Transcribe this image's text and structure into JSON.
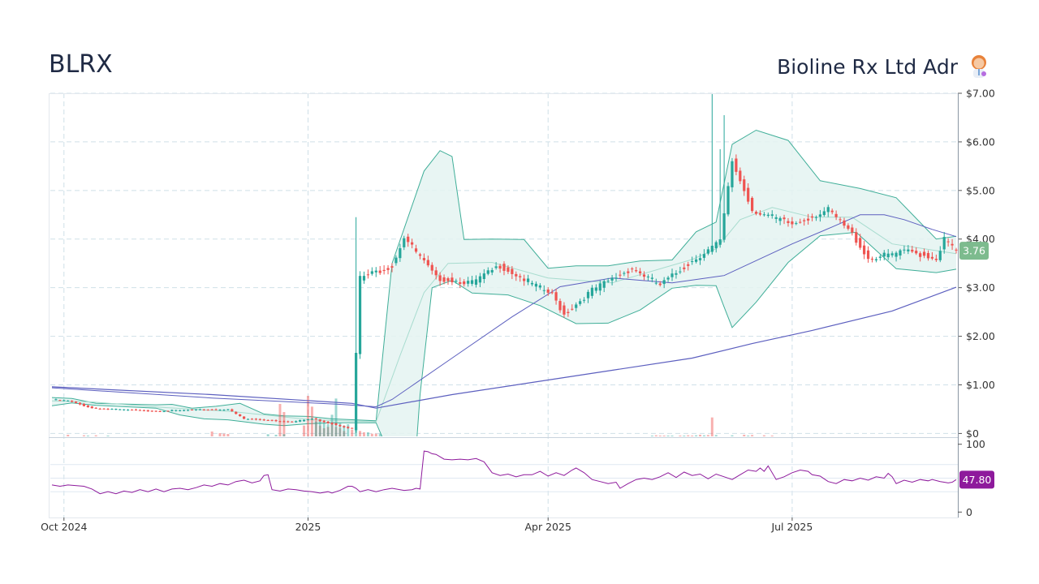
{
  "header": {
    "ticker": "BLRX",
    "company": "Bioline Rx Ltd Adr",
    "company_icon": "scientist-icon"
  },
  "colors": {
    "up": "#26a69a",
    "down": "#ef5350",
    "band_fill": "#e4f3f1",
    "band_line": "#3fae98",
    "ma_line": "#5c5fbf",
    "rsi_line": "#8e1a9c",
    "price_badge": "#7dbb8e",
    "rsi_badge": "#8e1a9c"
  },
  "chart_data": {
    "type": "candlestick",
    "price_axis": {
      "ticks": [
        "$0",
        "$1.00",
        "$2.00",
        "$3.00",
        "$4.00",
        "$5.00",
        "$6.00",
        "$7.00"
      ],
      "values": [
        0,
        1,
        2,
        3,
        4,
        5,
        6,
        7
      ],
      "ylim": [
        -0.06,
        7.0
      ]
    },
    "rsi_axis": {
      "ticks": [
        "0",
        "100"
      ],
      "values": [
        0,
        100
      ],
      "ylim": [
        -8,
        108
      ]
    },
    "x_ticks": [
      {
        "label": "Oct 2024",
        "i": 3
      },
      {
        "label": "2025",
        "i": 64
      },
      {
        "label": "Apr 2025",
        "i": 124
      },
      {
        "label": "Jul 2025",
        "i": 185
      }
    ],
    "last_price": "3.76",
    "last_rsi": "47.80",
    "segments": [
      {
        "from": 0,
        "to": 4,
        "start": 0.7,
        "end": 0.67
      },
      {
        "from": 4,
        "to": 10,
        "start": 0.67,
        "end": 0.52
      },
      {
        "from": 10,
        "to": 25,
        "start": 0.52,
        "end": 0.46
      },
      {
        "from": 25,
        "to": 44,
        "start": 0.46,
        "end": 0.5
      },
      {
        "from": 44,
        "to": 48,
        "start": 0.5,
        "end": 0.3
      },
      {
        "from": 48,
        "to": 60,
        "start": 0.3,
        "end": 0.24
      },
      {
        "from": 60,
        "to": 65,
        "start": 0.24,
        "end": 0.3
      },
      {
        "from": 65,
        "to": 75,
        "start": 0.3,
        "end": 0.1
      },
      {
        "from": 75,
        "to": 77,
        "start": 0.1,
        "end": 3.2
      },
      {
        "from": 77,
        "to": 85,
        "start": 3.2,
        "end": 3.45
      },
      {
        "from": 85,
        "to": 88,
        "start": 3.45,
        "end": 4.05
      },
      {
        "from": 88,
        "to": 96,
        "start": 4.05,
        "end": 3.2
      },
      {
        "from": 96,
        "to": 105,
        "start": 3.2,
        "end": 3.1
      },
      {
        "from": 105,
        "to": 112,
        "start": 3.1,
        "end": 3.45
      },
      {
        "from": 112,
        "to": 125,
        "start": 3.45,
        "end": 2.85
      },
      {
        "from": 125,
        "to": 128,
        "start": 2.85,
        "end": 2.45
      },
      {
        "from": 128,
        "to": 135,
        "start": 2.45,
        "end": 2.95
      },
      {
        "from": 135,
        "to": 145,
        "start": 2.95,
        "end": 3.4
      },
      {
        "from": 145,
        "to": 152,
        "start": 3.4,
        "end": 3.05
      },
      {
        "from": 152,
        "to": 160,
        "start": 3.05,
        "end": 3.55
      },
      {
        "from": 160,
        "to": 167,
        "start": 3.55,
        "end": 3.95
      },
      {
        "from": 167,
        "to": 170,
        "start": 3.95,
        "end": 5.6
      },
      {
        "from": 170,
        "to": 175,
        "start": 5.6,
        "end": 4.6
      },
      {
        "from": 175,
        "to": 185,
        "start": 4.6,
        "end": 4.3
      },
      {
        "from": 185,
        "to": 194,
        "start": 4.3,
        "end": 4.6
      },
      {
        "from": 194,
        "to": 200,
        "start": 4.6,
        "end": 4.1
      },
      {
        "from": 200,
        "to": 204,
        "start": 4.1,
        "end": 3.6
      },
      {
        "from": 204,
        "to": 214,
        "start": 3.6,
        "end": 3.75
      },
      {
        "from": 214,
        "to": 221,
        "start": 3.75,
        "end": 3.6
      },
      {
        "from": 221,
        "to": 223,
        "start": 3.6,
        "end": 4.0
      },
      {
        "from": 223,
        "to": 226,
        "start": 4.0,
        "end": 3.76
      }
    ],
    "spikes": [
      {
        "i": 76,
        "high": 4.45
      },
      {
        "i": 165,
        "high": 7.0
      },
      {
        "i": 167,
        "high": 5.85
      },
      {
        "i": 168,
        "high": 6.55
      }
    ],
    "bands": {
      "upper": [
        [
          0,
          0.74
        ],
        [
          5,
          0.72
        ],
        [
          11,
          0.62
        ],
        [
          26,
          0.59
        ],
        [
          30,
          0.6
        ],
        [
          35,
          0.52
        ],
        [
          41,
          0.56
        ],
        [
          47,
          0.62
        ],
        [
          53,
          0.4
        ],
        [
          58,
          0.36
        ],
        [
          64,
          0.35
        ],
        [
          70,
          0.3
        ],
        [
          81,
          0.26
        ],
        [
          85,
          3.5
        ],
        [
          93,
          5.4
        ],
        [
          97,
          5.82
        ],
        [
          100,
          5.7
        ],
        [
          103,
          3.99
        ],
        [
          110,
          4.0
        ],
        [
          118,
          3.99
        ],
        [
          124,
          3.4
        ],
        [
          131,
          3.45
        ],
        [
          139,
          3.45
        ],
        [
          147,
          3.55
        ],
        [
          155,
          3.57
        ],
        [
          161,
          4.15
        ],
        [
          166,
          4.35
        ],
        [
          170,
          5.95
        ],
        [
          176,
          6.24
        ],
        [
          184,
          6.03
        ],
        [
          192,
          5.2
        ],
        [
          202,
          5.04
        ],
        [
          211,
          4.85
        ],
        [
          221,
          4.0
        ],
        [
          226,
          4.06
        ]
      ],
      "lower": [
        [
          0,
          0.57
        ],
        [
          5,
          0.63
        ],
        [
          11,
          0.58
        ],
        [
          26,
          0.52
        ],
        [
          32,
          0.38
        ],
        [
          38,
          0.3
        ],
        [
          44,
          0.28
        ],
        [
          53,
          0.19
        ],
        [
          58,
          0.16
        ],
        [
          64,
          0.2
        ],
        [
          70,
          0.22
        ],
        [
          81,
          0.22
        ],
        [
          90,
          -1.5
        ],
        [
          92,
          0.8
        ],
        [
          95,
          3.0
        ],
        [
          100,
          3.15
        ],
        [
          105,
          2.89
        ],
        [
          114,
          2.85
        ],
        [
          122,
          2.63
        ],
        [
          131,
          2.26
        ],
        [
          139,
          2.27
        ],
        [
          147,
          2.54
        ],
        [
          155,
          2.99
        ],
        [
          161,
          3.05
        ],
        [
          166,
          3.04
        ],
        [
          168,
          2.6
        ],
        [
          170,
          2.18
        ],
        [
          176,
          2.7
        ],
        [
          184,
          3.52
        ],
        [
          192,
          4.07
        ],
        [
          201,
          4.14
        ],
        [
          211,
          3.39
        ],
        [
          221,
          3.31
        ],
        [
          226,
          3.38
        ]
      ],
      "mid": [
        [
          0,
          0.67
        ],
        [
          10,
          0.65
        ],
        [
          25,
          0.55
        ],
        [
          45,
          0.45
        ],
        [
          65,
          0.28
        ],
        [
          81,
          0.24
        ],
        [
          87,
          1.6
        ],
        [
          93,
          2.9
        ],
        [
          99,
          3.5
        ],
        [
          110,
          3.52
        ],
        [
          124,
          3.2
        ],
        [
          140,
          3.1
        ],
        [
          160,
          3.58
        ],
        [
          166,
          3.8
        ],
        [
          172,
          4.4
        ],
        [
          180,
          4.65
        ],
        [
          190,
          4.45
        ],
        [
          200,
          4.45
        ],
        [
          210,
          3.9
        ],
        [
          226,
          3.7
        ]
      ]
    },
    "ma_short": [
      [
        0,
        0.94
      ],
      [
        40,
        0.73
      ],
      [
        72,
        0.6
      ],
      [
        81,
        0.55
      ],
      [
        85,
        0.7
      ],
      [
        100,
        1.55
      ],
      [
        115,
        2.4
      ],
      [
        127,
        3.02
      ],
      [
        140,
        3.2
      ],
      [
        155,
        3.1
      ],
      [
        168,
        3.25
      ],
      [
        185,
        3.9
      ],
      [
        195,
        4.25
      ],
      [
        202,
        4.5
      ],
      [
        208,
        4.5
      ],
      [
        213,
        4.4
      ],
      [
        220,
        4.2
      ],
      [
        226,
        4.05
      ]
    ],
    "ma_long": [
      [
        0,
        0.96
      ],
      [
        40,
        0.8
      ],
      [
        75,
        0.62
      ],
      [
        81,
        0.52
      ],
      [
        100,
        0.8
      ],
      [
        120,
        1.05
      ],
      [
        140,
        1.3
      ],
      [
        160,
        1.55
      ],
      [
        175,
        1.85
      ],
      [
        190,
        2.12
      ],
      [
        210,
        2.52
      ],
      [
        226,
        3.01
      ]
    ],
    "rsi": [
      [
        0,
        40
      ],
      [
        2,
        38
      ],
      [
        4,
        40
      ],
      [
        8,
        38
      ],
      [
        10,
        34
      ],
      [
        12,
        27
      ],
      [
        14,
        30
      ],
      [
        16,
        27
      ],
      [
        18,
        31
      ],
      [
        20,
        29
      ],
      [
        22,
        33
      ],
      [
        24,
        30
      ],
      [
        26,
        34
      ],
      [
        28,
        30
      ],
      [
        30,
        34
      ],
      [
        32,
        35
      ],
      [
        34,
        33
      ],
      [
        36,
        36
      ],
      [
        38,
        40
      ],
      [
        40,
        38
      ],
      [
        42,
        42
      ],
      [
        44,
        40
      ],
      [
        46,
        45
      ],
      [
        48,
        47
      ],
      [
        50,
        43
      ],
      [
        52,
        46
      ],
      [
        53,
        54
      ],
      [
        54,
        55
      ],
      [
        55,
        33
      ],
      [
        57,
        31
      ],
      [
        59,
        34
      ],
      [
        61,
        33
      ],
      [
        63,
        31
      ],
      [
        65,
        30
      ],
      [
        67,
        28
      ],
      [
        69,
        30
      ],
      [
        70,
        28
      ],
      [
        72,
        32
      ],
      [
        74,
        38
      ],
      [
        75,
        38
      ],
      [
        76,
        35
      ],
      [
        77,
        30
      ],
      [
        79,
        33
      ],
      [
        81,
        30
      ],
      [
        83,
        33
      ],
      [
        85,
        35
      ],
      [
        88,
        32
      ],
      [
        90,
        33
      ],
      [
        91,
        35
      ],
      [
        92,
        34
      ],
      [
        93,
        90
      ],
      [
        94,
        89
      ],
      [
        95,
        86
      ],
      [
        96,
        85
      ],
      [
        98,
        78
      ],
      [
        100,
        77
      ],
      [
        102,
        78
      ],
      [
        104,
        77
      ],
      [
        106,
        79
      ],
      [
        108,
        74
      ],
      [
        110,
        58
      ],
      [
        112,
        54
      ],
      [
        114,
        56
      ],
      [
        116,
        52
      ],
      [
        118,
        55
      ],
      [
        120,
        55
      ],
      [
        122,
        60
      ],
      [
        124,
        53
      ],
      [
        126,
        58
      ],
      [
        128,
        54
      ],
      [
        130,
        62
      ],
      [
        131,
        65
      ],
      [
        133,
        58
      ],
      [
        135,
        48
      ],
      [
        137,
        45
      ],
      [
        139,
        42
      ],
      [
        141,
        44
      ],
      [
        142,
        35
      ],
      [
        144,
        42
      ],
      [
        146,
        48
      ],
      [
        148,
        50
      ],
      [
        150,
        48
      ],
      [
        152,
        52
      ],
      [
        154,
        58
      ],
      [
        156,
        51
      ],
      [
        158,
        59
      ],
      [
        160,
        54
      ],
      [
        162,
        56
      ],
      [
        164,
        49
      ],
      [
        166,
        56
      ],
      [
        168,
        52
      ],
      [
        170,
        48
      ],
      [
        172,
        55
      ],
      [
        174,
        62
      ],
      [
        176,
        60
      ],
      [
        177,
        65
      ],
      [
        178,
        60
      ],
      [
        179,
        68
      ],
      [
        181,
        48
      ],
      [
        183,
        52
      ],
      [
        185,
        58
      ],
      [
        187,
        62
      ],
      [
        189,
        60
      ],
      [
        190,
        55
      ],
      [
        192,
        53
      ],
      [
        194,
        45
      ],
      [
        196,
        42
      ],
      [
        198,
        48
      ],
      [
        200,
        46
      ],
      [
        202,
        50
      ],
      [
        204,
        47
      ],
      [
        206,
        52
      ],
      [
        208,
        50
      ],
      [
        209,
        57
      ],
      [
        210,
        52
      ],
      [
        211,
        42
      ],
      [
        213,
        47
      ],
      [
        215,
        44
      ],
      [
        217,
        48
      ],
      [
        219,
        46
      ],
      [
        220,
        48
      ],
      [
        222,
        45
      ],
      [
        223,
        44
      ],
      [
        224,
        43
      ],
      [
        225,
        44
      ],
      [
        226,
        47.8
      ]
    ],
    "volume_red": [
      [
        4,
        0.6
      ],
      [
        8,
        0.4
      ],
      [
        11,
        0.4
      ],
      [
        40,
        1.8
      ],
      [
        42,
        1.2
      ],
      [
        43,
        1.0
      ],
      [
        44,
        0.9
      ],
      [
        57,
        12.0
      ],
      [
        58,
        9.0
      ],
      [
        63,
        4.0
      ],
      [
        64,
        15.0
      ],
      [
        65,
        11.0
      ],
      [
        66,
        6.0
      ],
      [
        67,
        4.0
      ],
      [
        68,
        3.0
      ],
      [
        69,
        3.5
      ],
      [
        70,
        5.0
      ],
      [
        71,
        3.5
      ],
      [
        72,
        3.0
      ],
      [
        73,
        2.0
      ],
      [
        75,
        2.5
      ],
      [
        77,
        2.0
      ],
      [
        78,
        1.5
      ],
      [
        80,
        1.0
      ],
      [
        81,
        1.0
      ],
      [
        151,
        0.4
      ],
      [
        152,
        0.3
      ],
      [
        153,
        0.3
      ],
      [
        157,
        0.3
      ],
      [
        159,
        0.4
      ],
      [
        160,
        0.3
      ],
      [
        162,
        0.6
      ],
      [
        164,
        0.5
      ],
      [
        165,
        7.0
      ],
      [
        173,
        0.6
      ],
      [
        175,
        0.5
      ],
      [
        178,
        0.4
      ],
      [
        180,
        0.3
      ]
    ],
    "volume_green": [
      [
        9,
        0.3
      ],
      [
        14,
        0.3
      ],
      [
        54,
        0.8
      ],
      [
        56,
        0.6
      ],
      [
        58,
        0.8
      ],
      [
        66,
        5.5
      ],
      [
        67,
        6.5
      ],
      [
        68,
        5.0
      ],
      [
        69,
        4.5
      ],
      [
        70,
        8.0
      ],
      [
        71,
        14.0
      ],
      [
        72,
        5.0
      ],
      [
        73,
        4.0
      ],
      [
        74,
        4.5
      ],
      [
        76,
        3.5
      ],
      [
        79,
        1.5
      ],
      [
        82,
        1.0
      ],
      [
        150,
        0.3
      ],
      [
        154,
        0.3
      ],
      [
        155,
        0.3
      ],
      [
        158,
        0.3
      ],
      [
        161,
        0.4
      ],
      [
        163,
        0.4
      ],
      [
        166,
        0.5
      ],
      [
        170,
        0.4
      ],
      [
        174,
        0.3
      ]
    ]
  }
}
